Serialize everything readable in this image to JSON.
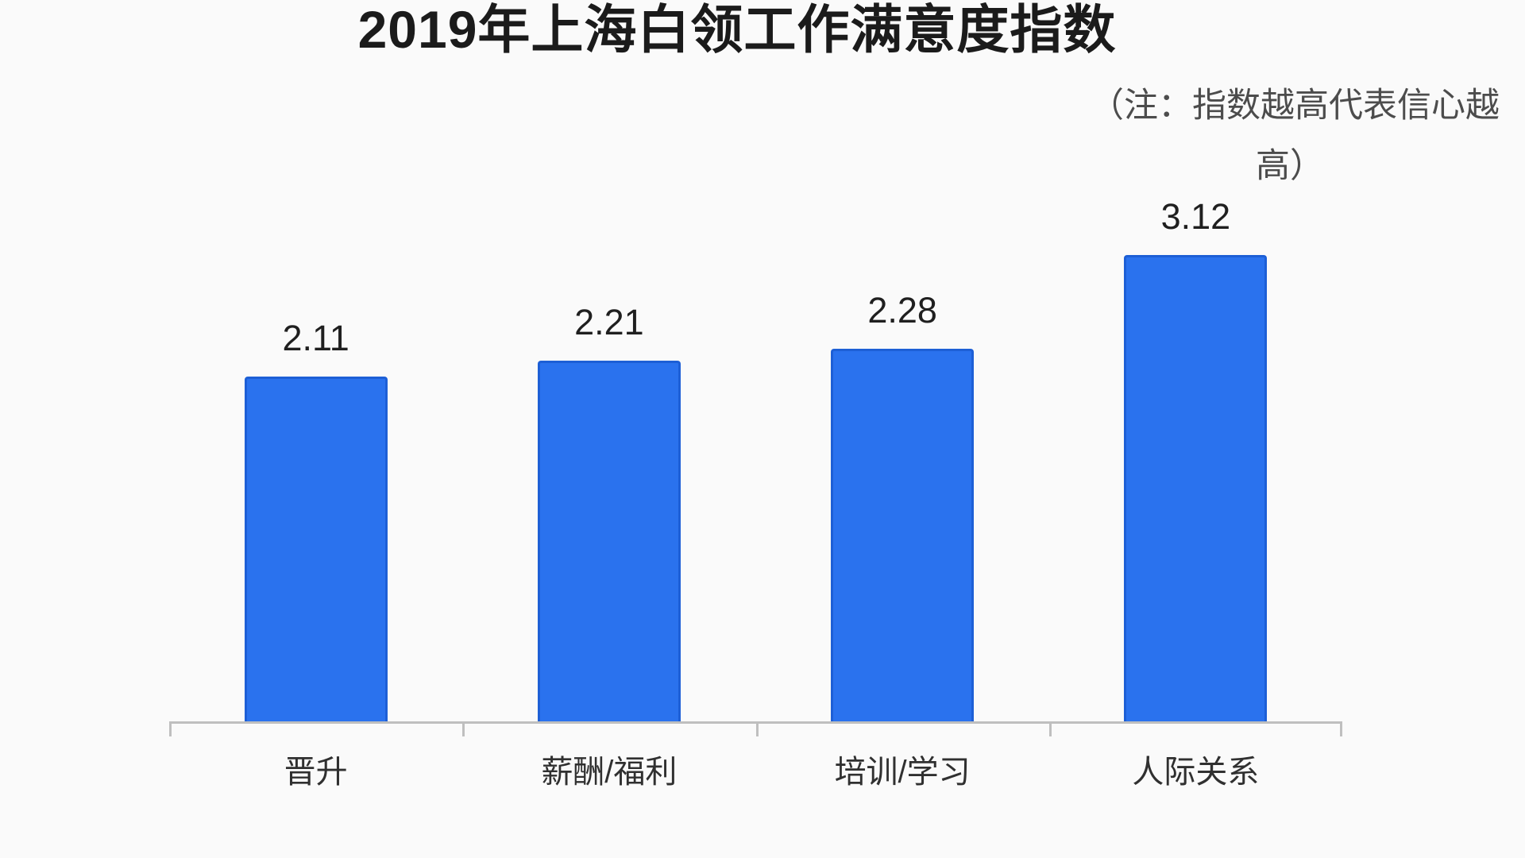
{
  "title": "2019年上海白领工作满意度指数",
  "note": {
    "line1": "（注：指数越高代表信心越",
    "line2": "高）",
    "full_text": "（注：指数越高代表信心越高）"
  },
  "chart_data": {
    "type": "bar",
    "title": "2019年上海白领工作满意度指数",
    "categories": [
      "晋升",
      "薪酬/福利",
      "培训/学习",
      "人际关系"
    ],
    "values": [
      2.11,
      2.21,
      2.28,
      3.12
    ],
    "value_labels": [
      "2.11",
      "2.21",
      "2.28",
      "3.12"
    ],
    "xlabel": "",
    "ylabel": "",
    "ylim": [
      0,
      3.5
    ],
    "grid": false,
    "legend": false,
    "annotation": "（注：指数越高代表信心越高）",
    "bar_color": "#2a72ee",
    "bar_border_color": "#1d5fd6",
    "axis_color": "#bfbfbf",
    "background_color": "#fafafa",
    "title_color": "#1b1b1b",
    "note_color": "#4c4c4c"
  }
}
